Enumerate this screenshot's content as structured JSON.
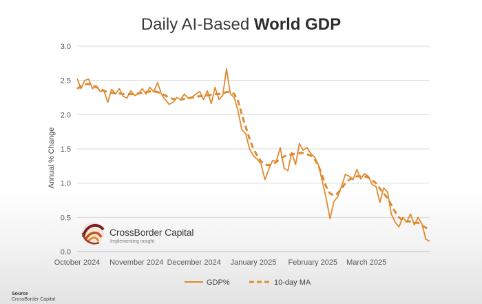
{
  "title": {
    "part1": "Daily AI-Based ",
    "part2": "World GDP"
  },
  "source": {
    "heading": "Source",
    "text": "CrossBorder Capital"
  },
  "logo": {
    "name": "CrossBorder Capital",
    "tagline": "Implementing insight"
  },
  "colors": {
    "line": "#e08a30",
    "grid": "#d9d9d9",
    "text": "#595959"
  },
  "chart_data": {
    "type": "line",
    "title": "Daily AI-Based World GDP",
    "ylabel": "Annual % Change",
    "xlabel": "",
    "ylim": [
      0,
      3.0
    ],
    "yticks": [
      "0.0",
      "0.5",
      "1.0",
      "1.5",
      "2.0",
      "2.5",
      "3.0"
    ],
    "xticks": [
      "October 2024",
      "November 2024",
      "December 2024",
      "January 2025",
      "February 2025",
      "March 2025"
    ],
    "grid": true,
    "legend_position": "bottom",
    "x": [
      "2024-10-01",
      "2024-10-03",
      "2024-10-05",
      "2024-10-07",
      "2024-10-09",
      "2024-10-11",
      "2024-10-13",
      "2024-10-15",
      "2024-10-17",
      "2024-10-19",
      "2024-10-21",
      "2024-10-23",
      "2024-10-25",
      "2024-10-27",
      "2024-10-29",
      "2024-10-31",
      "2024-11-02",
      "2024-11-04",
      "2024-11-06",
      "2024-11-08",
      "2024-11-10",
      "2024-11-12",
      "2024-11-14",
      "2024-11-16",
      "2024-11-18",
      "2024-11-20",
      "2024-11-22",
      "2024-11-24",
      "2024-11-26",
      "2024-11-28",
      "2024-11-30",
      "2024-12-02",
      "2024-12-04",
      "2024-12-06",
      "2024-12-08",
      "2024-12-10",
      "2024-12-12",
      "2024-12-14",
      "2024-12-16",
      "2024-12-18",
      "2024-12-20",
      "2024-12-22",
      "2024-12-24",
      "2024-12-26",
      "2024-12-28",
      "2024-12-30",
      "2025-01-01",
      "2025-01-03",
      "2025-01-05",
      "2025-01-07",
      "2025-01-09",
      "2025-01-11",
      "2025-01-13",
      "2025-01-15",
      "2025-01-17",
      "2025-01-19",
      "2025-01-21",
      "2025-01-23",
      "2025-01-25",
      "2025-01-27",
      "2025-01-29",
      "2025-01-31",
      "2025-02-02",
      "2025-02-04",
      "2025-02-06",
      "2025-02-08",
      "2025-02-10",
      "2025-02-12",
      "2025-02-14",
      "2025-02-16",
      "2025-02-18",
      "2025-02-20",
      "2025-02-22",
      "2025-02-24",
      "2025-02-26",
      "2025-02-28",
      "2025-03-02",
      "2025-03-04",
      "2025-03-06",
      "2025-03-08",
      "2025-03-10",
      "2025-03-12",
      "2025-03-14",
      "2025-03-16",
      "2025-03-18",
      "2025-03-20",
      "2025-03-22",
      "2025-03-24",
      "2025-03-26",
      "2025-03-28",
      "2025-03-30",
      "2025-04-01",
      "2025-04-03"
    ],
    "series": [
      {
        "name": "GDP%",
        "style": "solid",
        "values": [
          2.53,
          2.38,
          2.5,
          2.52,
          2.38,
          2.42,
          2.34,
          2.35,
          2.18,
          2.37,
          2.3,
          2.38,
          2.27,
          2.24,
          2.35,
          2.28,
          2.3,
          2.38,
          2.3,
          2.4,
          2.33,
          2.47,
          2.3,
          2.22,
          2.15,
          2.18,
          2.25,
          2.22,
          2.3,
          2.24,
          2.26,
          2.3,
          2.34,
          2.22,
          2.35,
          2.16,
          2.4,
          2.22,
          2.28,
          2.67,
          2.3,
          2.25,
          2.05,
          1.78,
          1.72,
          1.5,
          1.4,
          1.35,
          1.28,
          1.05,
          1.2,
          1.33,
          1.32,
          1.52,
          1.22,
          1.18,
          1.45,
          1.27,
          1.58,
          1.48,
          1.52,
          1.43,
          1.38,
          1.26,
          1.02,
          0.78,
          0.48,
          0.73,
          0.8,
          0.95,
          1.13,
          1.1,
          1.05,
          1.2,
          1.06,
          1.14,
          1.1,
          0.98,
          0.95,
          0.72,
          0.93,
          0.87,
          0.55,
          0.43,
          0.36,
          0.5,
          0.43,
          0.55,
          0.39,
          0.5,
          0.4,
          0.18,
          0.15
        ]
      },
      {
        "name": "10-day MA",
        "style": "dashed",
        "values": [
          2.38,
          2.41,
          2.44,
          2.45,
          2.43,
          2.4,
          2.38,
          2.35,
          2.33,
          2.32,
          2.31,
          2.31,
          2.3,
          2.3,
          2.3,
          2.3,
          2.31,
          2.32,
          2.33,
          2.34,
          2.34,
          2.33,
          2.31,
          2.28,
          2.25,
          2.23,
          2.22,
          2.22,
          2.23,
          2.24,
          2.25,
          2.26,
          2.27,
          2.27,
          2.28,
          2.29,
          2.3,
          2.3,
          2.31,
          2.33,
          2.33,
          2.3,
          2.2,
          2.0,
          1.82,
          1.65,
          1.5,
          1.4,
          1.32,
          1.27,
          1.26,
          1.28,
          1.31,
          1.36,
          1.39,
          1.41,
          1.42,
          1.43,
          1.44,
          1.44,
          1.42,
          1.4,
          1.35,
          1.25,
          1.1,
          0.95,
          0.85,
          0.82,
          0.85,
          0.92,
          1.0,
          1.05,
          1.08,
          1.1,
          1.1,
          1.1,
          1.08,
          1.04,
          1.0,
          0.92,
          0.85,
          0.78,
          0.68,
          0.58,
          0.5,
          0.45,
          0.44,
          0.44,
          0.42,
          0.42,
          0.38,
          0.35,
          0.32
        ]
      }
    ]
  }
}
